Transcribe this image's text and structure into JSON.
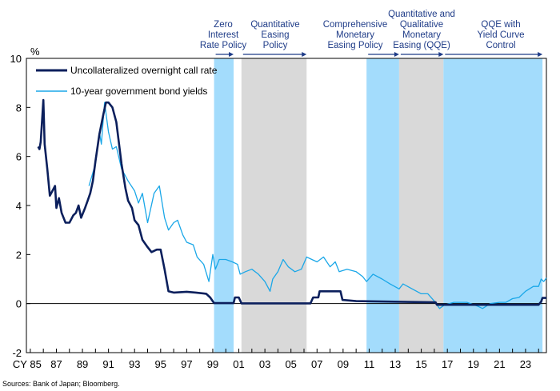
{
  "chart_data": {
    "type": "line",
    "title": "",
    "xlabel": "CY",
    "ylabel": "%",
    "xlim": [
      1984.7,
      2024.6
    ],
    "ylim": [
      -2,
      10
    ],
    "y_ticks": [
      "10",
      "8",
      "6",
      "4",
      "2",
      "0",
      "-2"
    ],
    "y_tick_values": [
      10,
      8,
      6,
      4,
      2,
      0,
      -2
    ],
    "x_ticks": [
      "CY 85",
      "87",
      "89",
      "91",
      "93",
      "95",
      "97",
      "99",
      "01",
      "03",
      "05",
      "07",
      "09",
      "11",
      "13",
      "15",
      "17",
      "19",
      "21",
      "23"
    ],
    "x_tick_values": [
      1985,
      1987,
      1989,
      1991,
      1993,
      1995,
      1997,
      1999,
      2001,
      2003,
      2005,
      2007,
      2009,
      2011,
      2013,
      2015,
      2017,
      2019,
      2021,
      2023
    ],
    "legend_position": "top-left",
    "grid": false,
    "periods": [
      {
        "label": [
          "Zero",
          "Interest",
          "Rate Policy"
        ],
        "start": 1999.1,
        "end": 2000.6,
        "color": "#a3dcfc"
      },
      {
        "label": [
          "Quantitative",
          "Easing",
          "Policy"
        ],
        "start": 2001.2,
        "end": 2006.2,
        "color": "#d9d9d9"
      },
      {
        "label": [
          "Comprehensive",
          "Monetary",
          "Easing Policy"
        ],
        "start": 2010.8,
        "end": 2013.3,
        "color": "#a3dcfc"
      },
      {
        "label": [
          "Quantitative and",
          "Qualitative",
          "Monetary",
          "Easing (QQE)"
        ],
        "start": 2013.3,
        "end": 2016.7,
        "color": "#d9d9d9"
      },
      {
        "label": [
          "QQE with",
          "Yield Curve",
          "Control"
        ],
        "start": 2016.7,
        "end": 2024.3,
        "color": "#a3dcfc"
      }
    ],
    "series": [
      {
        "name": "Uncollateralized overnight call rate",
        "color": "#0b1f5c",
        "points": [
          [
            1985.6,
            6.4
          ],
          [
            1985.7,
            6.3
          ],
          [
            1985.8,
            6.6
          ],
          [
            1986.0,
            8.3
          ],
          [
            1986.1,
            6.5
          ],
          [
            1986.3,
            5.5
          ],
          [
            1986.5,
            4.4
          ],
          [
            1986.7,
            4.6
          ],
          [
            1986.9,
            4.8
          ],
          [
            1987.0,
            3.9
          ],
          [
            1987.2,
            4.3
          ],
          [
            1987.4,
            3.7
          ],
          [
            1987.7,
            3.3
          ],
          [
            1988.0,
            3.3
          ],
          [
            1988.3,
            3.6
          ],
          [
            1988.5,
            3.7
          ],
          [
            1988.7,
            4.0
          ],
          [
            1988.9,
            3.5
          ],
          [
            1989.2,
            3.9
          ],
          [
            1989.4,
            4.2
          ],
          [
            1989.6,
            4.5
          ],
          [
            1989.8,
            5.0
          ],
          [
            1990.0,
            5.8
          ],
          [
            1990.3,
            6.9
          ],
          [
            1990.6,
            7.7
          ],
          [
            1990.8,
            8.2
          ],
          [
            1991.0,
            8.2
          ],
          [
            1991.3,
            8.0
          ],
          [
            1991.6,
            7.4
          ],
          [
            1992.0,
            5.7
          ],
          [
            1992.3,
            4.7
          ],
          [
            1992.5,
            4.2
          ],
          [
            1992.8,
            3.9
          ],
          [
            1993.0,
            3.4
          ],
          [
            1993.3,
            3.2
          ],
          [
            1993.6,
            2.6
          ],
          [
            1994.0,
            2.3
          ],
          [
            1994.3,
            2.1
          ],
          [
            1994.7,
            2.2
          ],
          [
            1995.0,
            2.2
          ],
          [
            1995.3,
            1.4
          ],
          [
            1995.6,
            0.5
          ],
          [
            1996.0,
            0.45
          ],
          [
            1997.0,
            0.48
          ],
          [
            1997.7,
            0.45
          ],
          [
            1998.5,
            0.4
          ],
          [
            1998.8,
            0.25
          ],
          [
            1999.1,
            0.02
          ],
          [
            2000.6,
            0.02
          ],
          [
            2000.7,
            0.25
          ],
          [
            2001.0,
            0.25
          ],
          [
            2001.2,
            0.01
          ],
          [
            2006.5,
            0.01
          ],
          [
            2006.7,
            0.25
          ],
          [
            2007.1,
            0.25
          ],
          [
            2007.2,
            0.5
          ],
          [
            2008.8,
            0.5
          ],
          [
            2008.95,
            0.15
          ],
          [
            2010.0,
            0.1
          ],
          [
            2016.1,
            0.05
          ],
          [
            2016.2,
            -0.05
          ],
          [
            2024.0,
            -0.05
          ],
          [
            2024.2,
            0.08
          ],
          [
            2024.3,
            0.23
          ],
          [
            2024.6,
            0.23
          ]
        ]
      },
      {
        "name": "10-year government bond yields",
        "color": "#1aa7e8",
        "points": [
          [
            1989.5,
            4.8
          ],
          [
            1990.0,
            5.7
          ],
          [
            1990.3,
            7.0
          ],
          [
            1990.45,
            6.5
          ],
          [
            1990.7,
            8.2
          ],
          [
            1991.0,
            7.0
          ],
          [
            1991.3,
            6.3
          ],
          [
            1991.6,
            6.4
          ],
          [
            1992.0,
            5.5
          ],
          [
            1992.5,
            5.0
          ],
          [
            1993.0,
            4.6
          ],
          [
            1993.3,
            4.1
          ],
          [
            1993.6,
            4.5
          ],
          [
            1994.0,
            3.3
          ],
          [
            1994.5,
            4.5
          ],
          [
            1994.9,
            4.8
          ],
          [
            1995.3,
            3.5
          ],
          [
            1995.6,
            3.0
          ],
          [
            1996.0,
            3.3
          ],
          [
            1996.3,
            3.4
          ],
          [
            1996.7,
            2.8
          ],
          [
            1997.0,
            2.5
          ],
          [
            1997.5,
            2.4
          ],
          [
            1997.8,
            1.9
          ],
          [
            1998.3,
            1.6
          ],
          [
            1998.7,
            0.9
          ],
          [
            1999.0,
            2.0
          ],
          [
            1999.2,
            1.4
          ],
          [
            1999.5,
            1.8
          ],
          [
            2000.0,
            1.8
          ],
          [
            2000.5,
            1.7
          ],
          [
            2000.9,
            1.6
          ],
          [
            2001.1,
            1.2
          ],
          [
            2001.5,
            1.3
          ],
          [
            2002.0,
            1.4
          ],
          [
            2002.5,
            1.2
          ],
          [
            2003.0,
            0.9
          ],
          [
            2003.4,
            0.5
          ],
          [
            2003.6,
            1.0
          ],
          [
            2004.0,
            1.3
          ],
          [
            2004.4,
            1.8
          ],
          [
            2004.8,
            1.5
          ],
          [
            2005.3,
            1.3
          ],
          [
            2005.8,
            1.4
          ],
          [
            2006.2,
            1.9
          ],
          [
            2006.6,
            1.8
          ],
          [
            2007.0,
            1.7
          ],
          [
            2007.5,
            1.9
          ],
          [
            2008.0,
            1.5
          ],
          [
            2008.4,
            1.7
          ],
          [
            2008.7,
            1.3
          ],
          [
            2009.3,
            1.4
          ],
          [
            2010.0,
            1.3
          ],
          [
            2010.5,
            1.1
          ],
          [
            2010.8,
            0.9
          ],
          [
            2011.3,
            1.2
          ],
          [
            2012.0,
            1.0
          ],
          [
            2012.6,
            0.8
          ],
          [
            2013.3,
            0.6
          ],
          [
            2013.6,
            0.8
          ],
          [
            2014.3,
            0.6
          ],
          [
            2015.0,
            0.4
          ],
          [
            2015.5,
            0.4
          ],
          [
            2016.0,
            0.1
          ],
          [
            2016.4,
            -0.2
          ],
          [
            2016.8,
            -0.05
          ],
          [
            2017.5,
            0.05
          ],
          [
            2018.5,
            0.05
          ],
          [
            2019.3,
            -0.1
          ],
          [
            2019.7,
            -0.2
          ],
          [
            2020.3,
            0.0
          ],
          [
            2021.0,
            0.05
          ],
          [
            2021.5,
            0.05
          ],
          [
            2022.0,
            0.2
          ],
          [
            2022.5,
            0.25
          ],
          [
            2023.0,
            0.5
          ],
          [
            2023.6,
            0.7
          ],
          [
            2024.0,
            0.7
          ],
          [
            2024.2,
            1.0
          ],
          [
            2024.4,
            0.9
          ],
          [
            2024.6,
            1.05
          ]
        ]
      }
    ]
  },
  "source": "Sources: Bank of Japan; Bloomberg."
}
